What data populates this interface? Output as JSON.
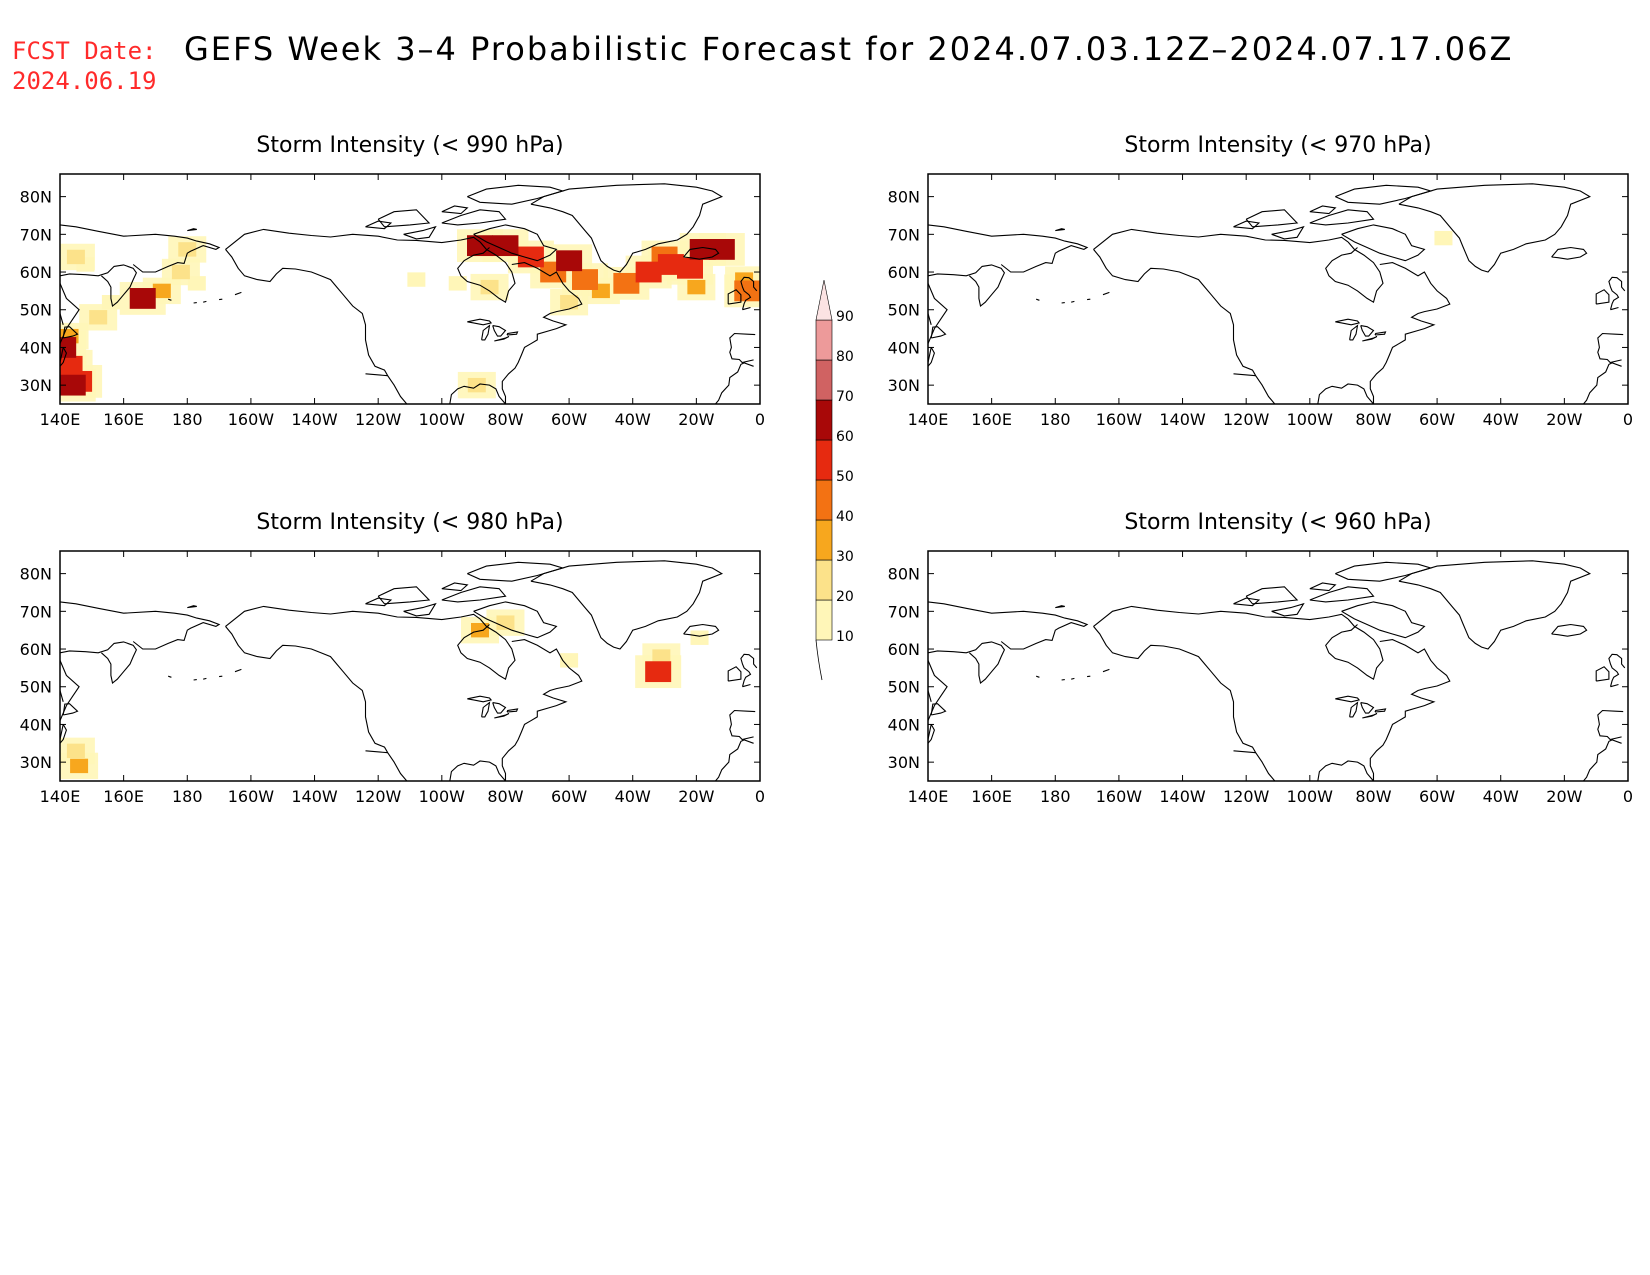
{
  "forecast_date": {
    "label": "FCST Date:",
    "value": "2024.06.19"
  },
  "title": "GEFS Week 3–4 Probabilistic Forecast for 2024.07.03.12Z–2024.07.17.06Z",
  "colors": {
    "forecast_date_text": "#ff2a2a",
    "coastline": "#000000"
  },
  "axes": {
    "lon_labels": [
      "140E",
      "160E",
      "180",
      "160W",
      "140W",
      "120W",
      "100W",
      "80W",
      "60W",
      "40W",
      "20W",
      "0"
    ],
    "lat_labels": [
      "80N",
      "70N",
      "60N",
      "50N",
      "40N",
      "30N"
    ]
  },
  "colorbar": {
    "levels": [
      10,
      20,
      30,
      40,
      50,
      60,
      70,
      80,
      90
    ],
    "colors": [
      "#fff6b8",
      "#fce28a",
      "#f7a71e",
      "#f37213",
      "#e62a10",
      "#a80808",
      "#d06262",
      "#ed9a9a",
      "#fbe3e3"
    ]
  },
  "panels": [
    {
      "title": "Storm Intensity (< 990 hPa)",
      "probability_areas": [
        {
          "lon": 145,
          "lat": 64,
          "level": 20
        },
        {
          "lon": 148,
          "lat": 62,
          "level": 10
        },
        {
          "lon": 141,
          "lat": 32,
          "level": 40
        },
        {
          "lon": 143,
          "lat": 35,
          "level": 50
        },
        {
          "lon": 141,
          "lat": 40,
          "level": 60
        },
        {
          "lon": 144,
          "lat": 30,
          "level": 60
        },
        {
          "lon": 146,
          "lat": 31,
          "level": 50
        },
        {
          "lon": 143,
          "lat": 43,
          "level": 30
        },
        {
          "lon": 152,
          "lat": 48,
          "level": 20
        },
        {
          "lon": 156,
          "lat": 52,
          "level": 10
        },
        {
          "lon": 166,
          "lat": 53,
          "level": 60
        },
        {
          "lon": 172,
          "lat": 55,
          "level": 30
        },
        {
          "lon": 178,
          "lat": 60,
          "level": 20
        },
        {
          "lon": -177,
          "lat": 57,
          "level": 10
        },
        {
          "lon": 180,
          "lat": 66,
          "level": 20
        },
        {
          "lon": -88,
          "lat": 67,
          "level": 60
        },
        {
          "lon": -80,
          "lat": 67,
          "level": 60
        },
        {
          "lon": -72,
          "lat": 64,
          "level": 50
        },
        {
          "lon": -65,
          "lat": 60,
          "level": 40
        },
        {
          "lon": -60,
          "lat": 63,
          "level": 60
        },
        {
          "lon": -55,
          "lat": 58,
          "level": 40
        },
        {
          "lon": -50,
          "lat": 55,
          "level": 30
        },
        {
          "lon": -60,
          "lat": 52,
          "level": 20
        },
        {
          "lon": -85,
          "lat": 56,
          "level": 20
        },
        {
          "lon": -95,
          "lat": 57,
          "level": 10
        },
        {
          "lon": -108,
          "lat": 58,
          "level": 10
        },
        {
          "lon": -42,
          "lat": 57,
          "level": 40
        },
        {
          "lon": -35,
          "lat": 60,
          "level": 50
        },
        {
          "lon": -28,
          "lat": 62,
          "level": 50
        },
        {
          "lon": -22,
          "lat": 61,
          "level": 50
        },
        {
          "lon": -18,
          "lat": 66,
          "level": 60
        },
        {
          "lon": -12,
          "lat": 66,
          "level": 60
        },
        {
          "lon": -30,
          "lat": 64,
          "level": 40
        },
        {
          "lon": -20,
          "lat": 56,
          "level": 30
        },
        {
          "lon": -5,
          "lat": 58,
          "level": 30
        },
        {
          "lon": -4,
          "lat": 55,
          "level": 40
        },
        {
          "lon": -89,
          "lat": 30,
          "level": 20
        }
      ]
    },
    {
      "title": "Storm Intensity (< 970 hPa)",
      "probability_areas": [
        {
          "lon": -58,
          "lat": 69,
          "level": 10
        }
      ]
    },
    {
      "title": "Storm Intensity (< 980 hPa)",
      "probability_areas": [
        {
          "lon": 145,
          "lat": 33,
          "level": 20
        },
        {
          "lon": 146,
          "lat": 29,
          "level": 30
        },
        {
          "lon": -88,
          "lat": 65,
          "level": 30
        },
        {
          "lon": -80,
          "lat": 67,
          "level": 20
        },
        {
          "lon": -60,
          "lat": 57,
          "level": 10
        },
        {
          "lon": -31,
          "lat": 58,
          "level": 20
        },
        {
          "lon": -32,
          "lat": 54,
          "level": 50
        },
        {
          "lon": -19,
          "lat": 63,
          "level": 10
        }
      ]
    },
    {
      "title": "Storm Intensity (< 960 hPa)",
      "probability_areas": []
    }
  ]
}
